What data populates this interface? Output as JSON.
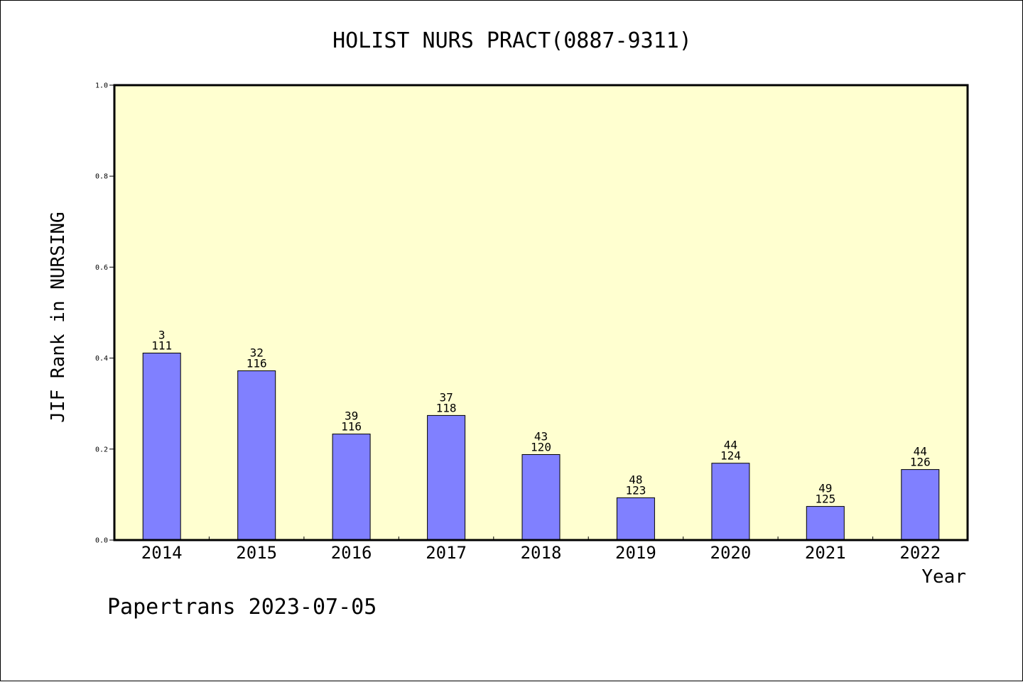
{
  "chart_data": {
    "type": "bar",
    "title": "HOLIST NURS PRACT(0887-9311)",
    "xlabel": "Year",
    "ylabel": "JIF Rank in NURSING",
    "ylim": [
      0.0,
      1.0
    ],
    "yticks": [
      "0.0",
      "0.2",
      "0.4",
      "0.6",
      "0.8",
      "1.0"
    ],
    "categories": [
      "2014",
      "2015",
      "2016",
      "2017",
      "2018",
      "2019",
      "2020",
      "2021",
      "2022"
    ],
    "values": [
      0.411,
      0.372,
      0.233,
      0.274,
      0.188,
      0.093,
      0.169,
      0.074,
      0.155
    ],
    "rank_labels": [
      "3",
      "32",
      "39",
      "37",
      "43",
      "48",
      "44",
      "49",
      "44"
    ],
    "total_labels": [
      "111",
      "116",
      "116",
      "118",
      "120",
      "123",
      "124",
      "125",
      "126"
    ],
    "grid": false,
    "legend": "none"
  },
  "footer": {
    "text": "Papertrans 2023-07-05"
  },
  "colors": {
    "plot_background": "#ffffd0",
    "bar_fill": "#8080ff",
    "bar_stroke": "#000000",
    "axis": "#000000"
  }
}
